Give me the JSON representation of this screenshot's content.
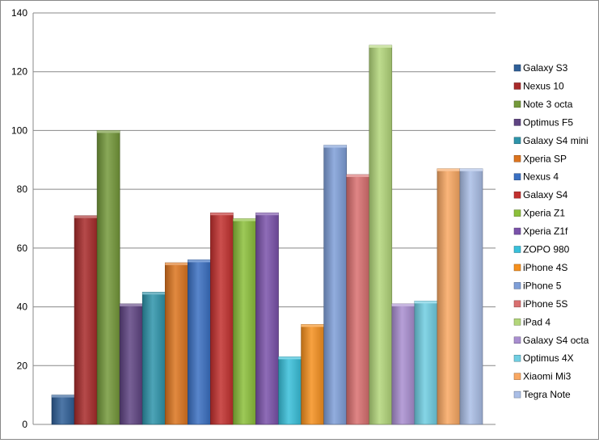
{
  "chart_data": {
    "type": "bar",
    "title": "",
    "xlabel": "",
    "ylabel": "",
    "ylim": [
      0,
      140
    ],
    "yticks": [
      0,
      20,
      40,
      60,
      80,
      100,
      120,
      140
    ],
    "grid": true,
    "legend_position": "right",
    "series": [
      {
        "name": "Galaxy S3",
        "value": 10,
        "color": "#2f5f98"
      },
      {
        "name": "Nexus 10",
        "value": 71,
        "color": "#a82a2a"
      },
      {
        "name": "Note 3 octa",
        "value": 100,
        "color": "#74993a"
      },
      {
        "name": "Optimus F5",
        "value": 41,
        "color": "#5f4482"
      },
      {
        "name": "Galaxy S4 mini",
        "value": 45,
        "color": "#2e94aa"
      },
      {
        "name": "Xperia SP",
        "value": 55,
        "color": "#dc741e"
      },
      {
        "name": "Nexus 4",
        "value": 56,
        "color": "#3a70c2"
      },
      {
        "name": "Galaxy S4",
        "value": 72,
        "color": "#c2302e"
      },
      {
        "name": "Xperia Z1",
        "value": 70,
        "color": "#8cc03a"
      },
      {
        "name": "Xperia Z1f",
        "value": 72,
        "color": "#7a52aa"
      },
      {
        "name": "ZOPO 980",
        "value": 23,
        "color": "#38c0da"
      },
      {
        "name": "iPhone 4S",
        "value": 34,
        "color": "#f5901e"
      },
      {
        "name": "iPhone 5",
        "value": 95,
        "color": "#7f9fd8"
      },
      {
        "name": "iPhone 5S",
        "value": 85,
        "color": "#d97070"
      },
      {
        "name": "iPad 4",
        "value": 129,
        "color": "#b3d67a"
      },
      {
        "name": "Galaxy S4 octa",
        "value": 41,
        "color": "#a98ed0"
      },
      {
        "name": "Optimus 4X",
        "value": 42,
        "color": "#70cee2"
      },
      {
        "name": "Xiaomi Mi3",
        "value": 87,
        "color": "#f9a862"
      },
      {
        "name": "Tegra Note",
        "value": 87,
        "color": "#aabee6"
      }
    ]
  }
}
